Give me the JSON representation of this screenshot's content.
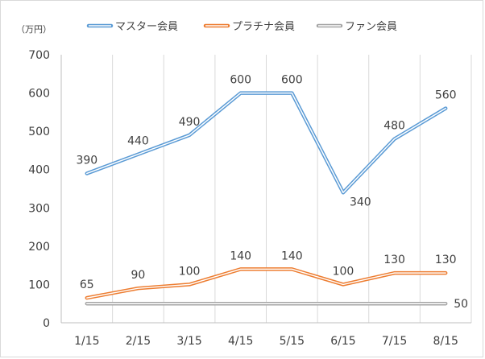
{
  "chart_data": {
    "type": "line",
    "unit_label": "（万円）",
    "categories": [
      "1/15",
      "2/15",
      "3/15",
      "4/15",
      "5/15",
      "6/15",
      "7/15",
      "8/15"
    ],
    "ylim": [
      0,
      700
    ],
    "yticks": [
      0,
      100,
      200,
      300,
      400,
      500,
      600,
      700
    ],
    "grid": "vertical",
    "legend_position": "top",
    "series": [
      {
        "name": "マスター会員",
        "color": "#5b9bd5",
        "values": [
          390,
          440,
          490,
          600,
          600,
          340,
          480,
          560
        ],
        "labels": [
          "390",
          "440",
          "490",
          "600",
          "600",
          "340",
          "480",
          "560"
        ]
      },
      {
        "name": "プラチナ会員",
        "color": "#ed7d31",
        "values": [
          65,
          90,
          100,
          140,
          140,
          100,
          130,
          130
        ],
        "labels": [
          "65",
          "90",
          "100",
          "140",
          "140",
          "100",
          "130",
          "130"
        ]
      },
      {
        "name": "ファン会員",
        "color": "#a5a5a5",
        "values": [
          50,
          50,
          50,
          50,
          50,
          50,
          50,
          50
        ],
        "labels": [
          null,
          null,
          null,
          null,
          null,
          null,
          null,
          "50"
        ]
      }
    ]
  }
}
